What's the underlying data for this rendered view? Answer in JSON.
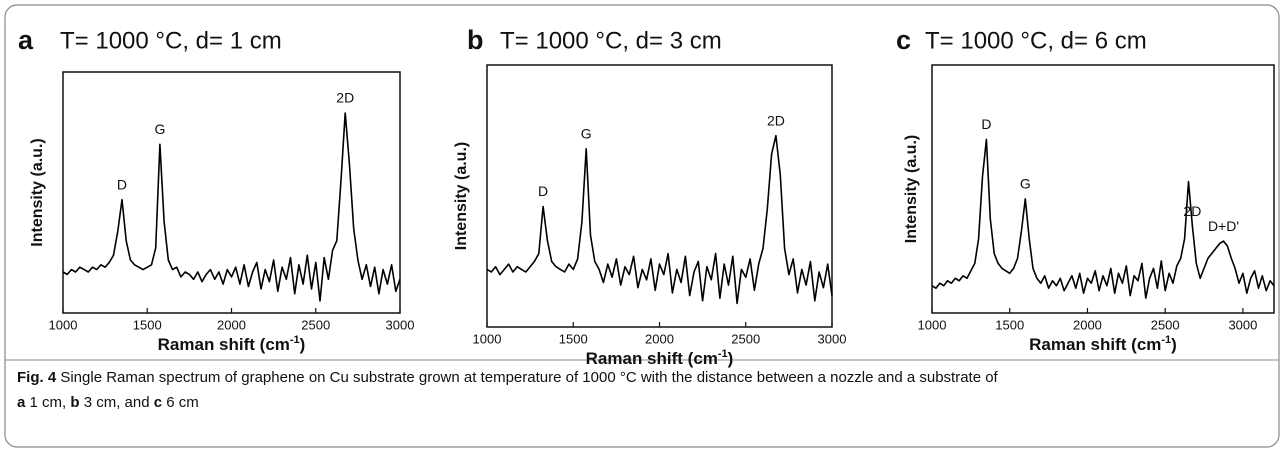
{
  "chart_data": [
    {
      "type": "line",
      "panel": "a",
      "title": "T= 1000 °C, d= 1 cm",
      "xlabel": [
        "Raman shift (cm",
        "-1",
        ")"
      ],
      "ylabel": "Intensity (a.u.)",
      "color": "#000000",
      "xlim": [
        1000,
        3000
      ],
      "xticks": [
        1000,
        1500,
        2000,
        2500,
        3000
      ],
      "ylim": [
        0,
        100
      ],
      "x": [
        1000,
        1025,
        1050,
        1075,
        1100,
        1125,
        1150,
        1175,
        1200,
        1225,
        1250,
        1275,
        1300,
        1325,
        1350,
        1375,
        1400,
        1425,
        1450,
        1475,
        1500,
        1525,
        1550,
        1575,
        1600,
        1625,
        1650,
        1675,
        1700,
        1725,
        1750,
        1775,
        1800,
        1825,
        1850,
        1875,
        1900,
        1925,
        1950,
        1975,
        2000,
        2025,
        2050,
        2075,
        2100,
        2125,
        2150,
        2175,
        2200,
        2225,
        2250,
        2275,
        2300,
        2325,
        2350,
        2375,
        2400,
        2425,
        2450,
        2475,
        2500,
        2525,
        2550,
        2575,
        2600,
        2625,
        2650,
        2675,
        2700,
        2725,
        2750,
        2775,
        2800,
        2825,
        2850,
        2875,
        2900,
        2925,
        2950,
        2975,
        3000
      ],
      "values": [
        17,
        16,
        18,
        17,
        19,
        18,
        17,
        19,
        18,
        20,
        19,
        21,
        24,
        34,
        47,
        30,
        22,
        20,
        19,
        18,
        19,
        20,
        27,
        70,
        38,
        22,
        18,
        19,
        15,
        17,
        16,
        14,
        17,
        13,
        16,
        18,
        14,
        17,
        12,
        18,
        15,
        19,
        12,
        20,
        11,
        17,
        21,
        10,
        18,
        13,
        22,
        9,
        19,
        14,
        23,
        8,
        20,
        12,
        24,
        10,
        21,
        5,
        23,
        14,
        26,
        30,
        55,
        83,
        62,
        35,
        22,
        14,
        20,
        11,
        19,
        8,
        18,
        12,
        20,
        9,
        14
      ],
      "annotations": [
        {
          "text": "D",
          "x": 1350
        },
        {
          "text": "G",
          "x": 1575
        },
        {
          "text": "2D",
          "x": 2675
        }
      ]
    },
    {
      "type": "line",
      "panel": "b",
      "title": "T= 1000 °C, d= 3 cm",
      "xlabel": [
        "Raman shift (cm",
        "-1",
        ")"
      ],
      "ylabel": "Intensity (a.u.)",
      "color": "#000000",
      "xlim": [
        1000,
        3000
      ],
      "xticks": [
        1000,
        1500,
        2000,
        2500,
        3000
      ],
      "ylim": [
        0,
        100
      ],
      "x": [
        1000,
        1025,
        1050,
        1075,
        1100,
        1125,
        1150,
        1175,
        1200,
        1225,
        1250,
        1275,
        1300,
        1325,
        1350,
        1375,
        1400,
        1425,
        1450,
        1475,
        1500,
        1525,
        1550,
        1575,
        1600,
        1625,
        1650,
        1675,
        1700,
        1725,
        1750,
        1775,
        1800,
        1825,
        1850,
        1875,
        1900,
        1925,
        1950,
        1975,
        2000,
        2025,
        2050,
        2075,
        2100,
        2125,
        2150,
        2175,
        2200,
        2225,
        2250,
        2275,
        2300,
        2325,
        2350,
        2375,
        2400,
        2425,
        2450,
        2475,
        2500,
        2525,
        2550,
        2575,
        2600,
        2625,
        2650,
        2675,
        2700,
        2725,
        2750,
        2775,
        2800,
        2825,
        2850,
        2875,
        2900,
        2925,
        2950,
        2975,
        3000
      ],
      "values": [
        22,
        21,
        23,
        20,
        22,
        24,
        21,
        23,
        22,
        21,
        23,
        25,
        28,
        46,
        33,
        25,
        23,
        22,
        21,
        24,
        22,
        26,
        40,
        68,
        35,
        25,
        22,
        17,
        24,
        19,
        26,
        16,
        23,
        20,
        27,
        15,
        22,
        18,
        26,
        14,
        24,
        20,
        28,
        13,
        22,
        17,
        27,
        12,
        21,
        25,
        10,
        23,
        18,
        28,
        11,
        24,
        16,
        27,
        9,
        22,
        19,
        26,
        14,
        24,
        30,
        45,
        66,
        73,
        58,
        30,
        20,
        26,
        13,
        22,
        16,
        25,
        10,
        21,
        15,
        24,
        12
      ],
      "annotations": [
        {
          "text": "D",
          "x": 1325
        },
        {
          "text": "G",
          "x": 1575
        },
        {
          "text": "2D",
          "x": 2675
        }
      ]
    },
    {
      "type": "line",
      "panel": "c",
      "title": "T= 1000 °C, d= 6 cm",
      "xlabel": [
        "Raman shift (cm",
        "-1",
        ")"
      ],
      "ylabel": "Intensity (a.u.)",
      "color": "#000000",
      "xlim": [
        1000,
        3200
      ],
      "xticks": [
        1000,
        1500,
        2000,
        2500,
        3000
      ],
      "ylim": [
        0,
        100
      ],
      "x": [
        1000,
        1025,
        1050,
        1075,
        1100,
        1125,
        1150,
        1175,
        1200,
        1225,
        1250,
        1275,
        1300,
        1325,
        1350,
        1375,
        1400,
        1425,
        1450,
        1475,
        1500,
        1525,
        1550,
        1575,
        1600,
        1625,
        1650,
        1675,
        1700,
        1725,
        1750,
        1775,
        1800,
        1825,
        1850,
        1875,
        1900,
        1925,
        1950,
        1975,
        2000,
        2025,
        2050,
        2075,
        2100,
        2125,
        2150,
        2175,
        2200,
        2225,
        2250,
        2275,
        2300,
        2325,
        2350,
        2375,
        2400,
        2425,
        2450,
        2475,
        2500,
        2525,
        2550,
        2575,
        2600,
        2625,
        2650,
        2675,
        2700,
        2725,
        2750,
        2775,
        2800,
        2825,
        2850,
        2875,
        2900,
        2925,
        2950,
        2975,
        3000,
        3025,
        3050,
        3075,
        3100,
        3125,
        3150,
        3175,
        3200
      ],
      "values": [
        11,
        10,
        12,
        11,
        13,
        12,
        14,
        13,
        15,
        14,
        17,
        20,
        30,
        55,
        70,
        38,
        24,
        20,
        18,
        17,
        16,
        18,
        22,
        33,
        46,
        30,
        18,
        14,
        12,
        15,
        10,
        13,
        11,
        14,
        9,
        12,
        15,
        10,
        16,
        8,
        14,
        12,
        17,
        9,
        15,
        11,
        18,
        8,
        16,
        12,
        19,
        7,
        15,
        13,
        20,
        6,
        14,
        18,
        10,
        21,
        9,
        16,
        12,
        19,
        22,
        30,
        53,
        35,
        20,
        14,
        18,
        22,
        24,
        26,
        28,
        29,
        27,
        22,
        18,
        12,
        16,
        8,
        14,
        17,
        10,
        15,
        9,
        13,
        11
      ],
      "annotations": [
        {
          "text": "D",
          "x": 1350
        },
        {
          "text": "G",
          "x": 1600
        },
        {
          "text": "2D",
          "x": 2675
        },
        {
          "text": "D+D'",
          "x": 2875
        }
      ]
    }
  ],
  "caption": {
    "lines": [
      [
        {
          "text": "Fig. 4",
          "bold": true
        },
        {
          "text": " Single Raman spectrum of graphene on Cu substrate grown at temperature of 1000 °C with the distance between a nozzle and a substrate of"
        }
      ],
      [
        {
          "text": "a",
          "bold": true
        },
        {
          "text": " 1 cm, "
        },
        {
          "text": "b",
          "bold": true
        },
        {
          "text": " 3 cm, and "
        },
        {
          "text": "c",
          "bold": true
        },
        {
          "text": " 6 cm"
        }
      ]
    ]
  }
}
